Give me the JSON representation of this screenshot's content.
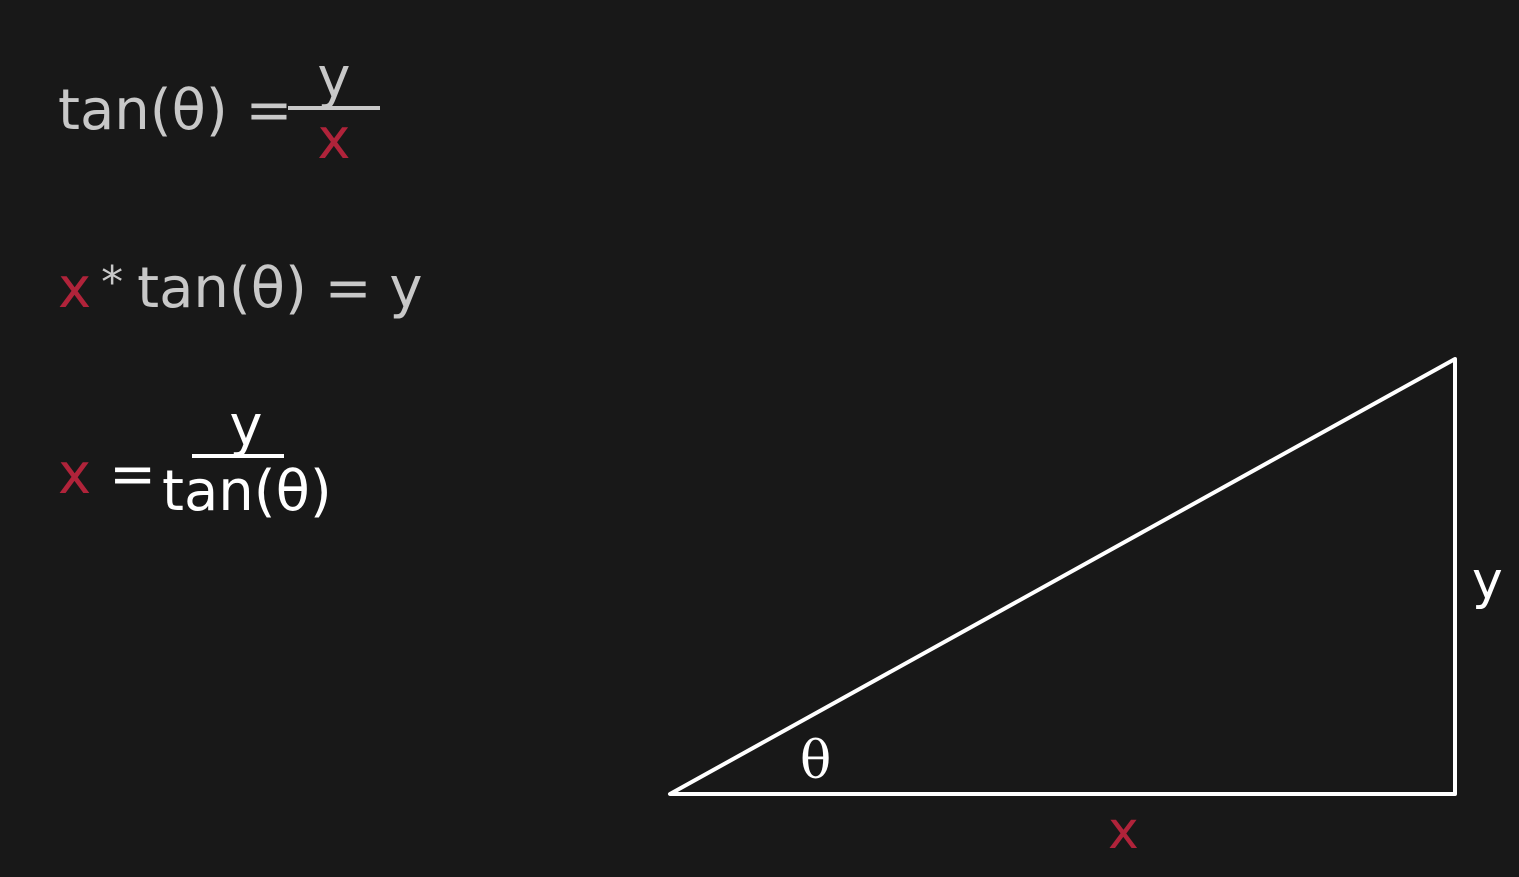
{
  "formulas": {
    "eq1": {
      "lhs": "tan(θ) =",
      "numerator": "y",
      "denominator": "x"
    },
    "eq2": {
      "x": "x",
      "op": "*",
      "rest": "tan(θ) = y"
    },
    "eq3": {
      "x": "x",
      "eq": "=",
      "numerator": "y",
      "denominator": "tan(θ)"
    }
  },
  "triangle": {
    "angle_label": "θ",
    "base_label": "x",
    "height_label": "y"
  },
  "colors": {
    "background": "#181818",
    "highlight": "#b0233a",
    "muted_text": "#c8c8c8",
    "text": "#ffffff"
  }
}
